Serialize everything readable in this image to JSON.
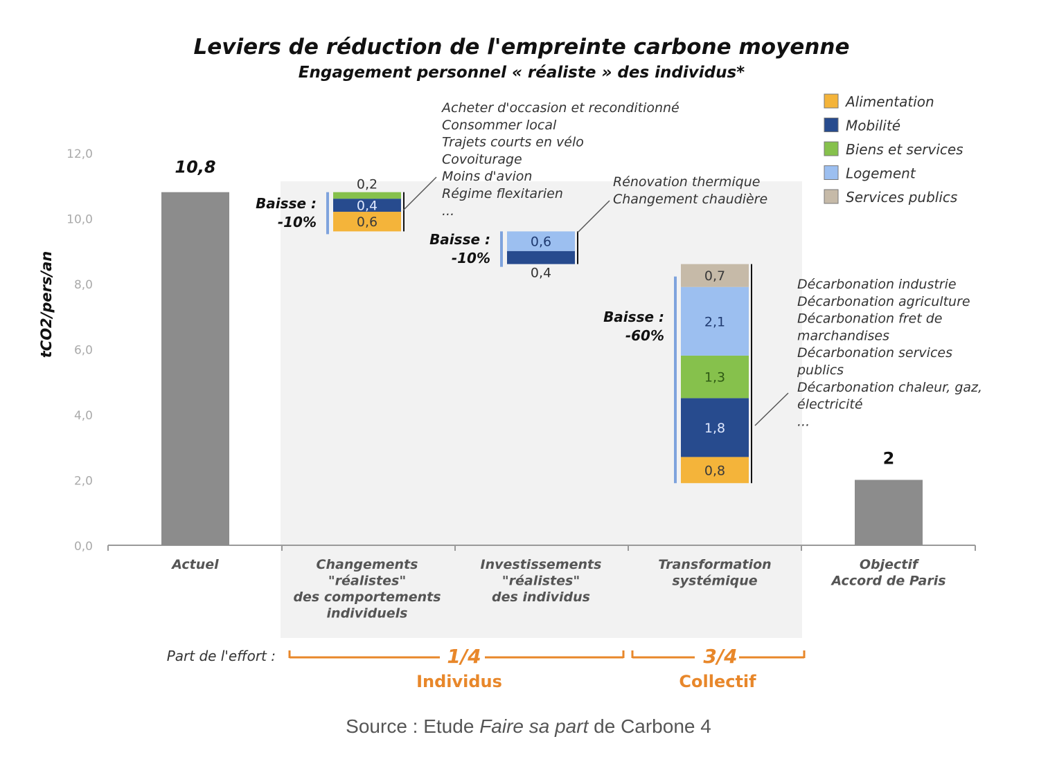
{
  "chart_data": {
    "type": "bar",
    "subtype": "waterfall-stacked",
    "title": "Leviers de réduction de l'empreinte carbone moyenne",
    "subtitle": "Engagement personnel « réaliste » des individus*",
    "ylabel": "tCO2/pers/an",
    "ylim": [
      0,
      12
    ],
    "yticks": [
      "0,0",
      "2,0",
      "4,0",
      "6,0",
      "8,0",
      "10,0",
      "12,0"
    ],
    "grid": false,
    "legend_position": "top-right",
    "categories": [
      "Actuel",
      "Changements \"réalistes\" des comportements individuels",
      "Investissements \"réalistes\" des individus",
      "Transformation systémique",
      "Objectif Accord de Paris"
    ],
    "category_lines": [
      [
        "Actuel"
      ],
      [
        "Changements",
        "\"réalistes\"",
        "des comportements",
        "individuels"
      ],
      [
        "Investissements",
        "\"réalistes\"",
        "des individus"
      ],
      [
        "Transformation",
        "systémique"
      ],
      [
        "Objectif",
        "Accord de Paris"
      ]
    ],
    "series": [
      {
        "name": "Alimentation",
        "color": "#f4b43a",
        "values": [
          null,
          0.6,
          null,
          0.8,
          null
        ]
      },
      {
        "name": "Mobilité",
        "color": "#274b8e",
        "values": [
          null,
          0.4,
          0.4,
          1.8,
          null
        ]
      },
      {
        "name": "Biens et services",
        "color": "#86c14c",
        "values": [
          null,
          0.2,
          null,
          1.3,
          null
        ]
      },
      {
        "name": "Logement",
        "color": "#9cbff0",
        "values": [
          null,
          null,
          0.6,
          2.1,
          null
        ]
      },
      {
        "name": "Services publics",
        "color": "#c6baa8",
        "values": [
          null,
          null,
          null,
          0.7,
          null
        ]
      }
    ],
    "totals": [
      {
        "category": "Actuel",
        "value": 10.8,
        "label": "10,8"
      },
      {
        "category": "Objectif Accord de Paris",
        "value": 2,
        "label": "2"
      }
    ],
    "total_color": "#8c8c8c",
    "segment_labels": [
      [
        "0,6",
        "0,4",
        "0,2"
      ],
      [
        "0,4",
        "0,6"
      ],
      [
        "0,8",
        "1,8",
        "1,3",
        "2,1",
        "0,7"
      ]
    ],
    "baisse": [
      {
        "label": "Baisse :",
        "pct": "-10%"
      },
      {
        "label": "Baisse :",
        "pct": "-10%"
      },
      {
        "label": "Baisse :",
        "pct": "-60%"
      }
    ],
    "annotations": [
      [
        "Acheter d'occasion et reconditionné",
        "Consommer local",
        "Trajets courts en vélo",
        "Covoiturage",
        "Moins d'avion",
        "Régime flexitarien",
        "..."
      ],
      [
        "Rénovation thermique",
        "Changement chaudière"
      ],
      [
        "Décarbonation industrie",
        "Décarbonation agriculture",
        "Décarbonation fret de",
        "marchandises",
        "Décarbonation services",
        "publics",
        "Décarbonation chaleur, gaz,",
        "électricité",
        "..."
      ]
    ],
    "effort": {
      "label": "Part de l'effort :",
      "individus_frac": "1/4",
      "individus": "Individus",
      "collectif_frac": "3/4",
      "collectif": "Collectif",
      "color": "#e8872a"
    }
  },
  "source": {
    "prefix": "Source : Etude ",
    "italic": "Faire sa part",
    "suffix": " de Carbone 4"
  }
}
